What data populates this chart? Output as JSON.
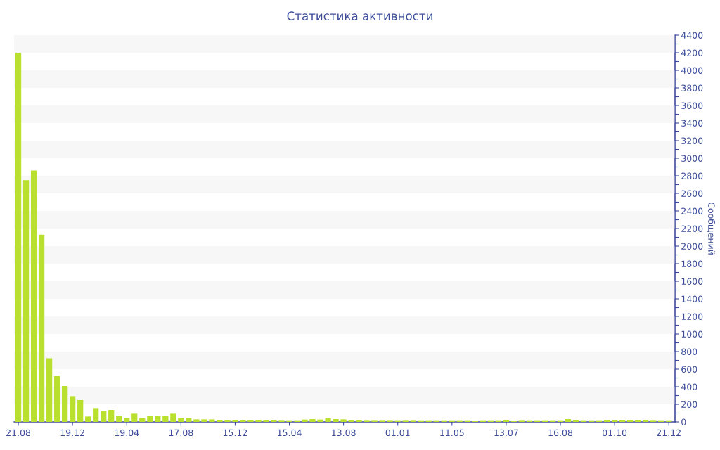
{
  "chart_data": {
    "type": "bar",
    "title": "Статистика активности",
    "y2label": "Сообщений",
    "categories": [
      "21.08",
      null,
      null,
      null,
      null,
      null,
      null,
      "19.12",
      null,
      null,
      null,
      null,
      null,
      null,
      "19.04",
      null,
      null,
      null,
      null,
      null,
      null,
      "17.08",
      null,
      null,
      null,
      null,
      null,
      null,
      "15.12",
      null,
      null,
      null,
      null,
      null,
      null,
      "15.04",
      null,
      null,
      null,
      null,
      null,
      null,
      "13.08",
      null,
      null,
      null,
      null,
      null,
      null,
      "01.01",
      null,
      null,
      null,
      null,
      null,
      null,
      "11.05",
      null,
      null,
      null,
      null,
      null,
      null,
      "13.07",
      null,
      null,
      null,
      null,
      null,
      null,
      "16.08",
      null,
      null,
      null,
      null,
      null,
      null,
      "01.10",
      null,
      null,
      null,
      null,
      null,
      null,
      "21.12"
    ],
    "series": [
      {
        "axis": "y2",
        "color": "#b9e02e",
        "values": [
          4200,
          2750,
          2860,
          2130,
          725,
          520,
          408,
          293,
          248,
          61,
          157,
          125,
          136,
          72,
          48,
          93,
          43,
          64,
          64,
          64,
          93,
          48,
          40,
          29,
          29,
          29,
          21,
          21,
          21,
          19,
          21,
          21,
          19,
          16,
          13,
          11,
          11,
          27,
          32,
          27,
          40,
          32,
          29,
          19,
          16,
          13,
          13,
          13,
          13,
          11,
          13,
          13,
          11,
          11,
          11,
          11,
          11,
          11,
          11,
          8,
          11,
          11,
          11,
          16,
          8,
          13,
          11,
          11,
          11,
          11,
          11,
          32,
          19,
          11,
          11,
          11,
          24,
          16,
          16,
          21,
          19,
          21,
          13,
          11,
          11
        ]
      }
    ],
    "y2lim": [
      0,
      4400
    ],
    "y2ticks": [
      0,
      {
        "value": 100,
        "label": null
      },
      200,
      {
        "value": 300,
        "label": null
      },
      400,
      {
        "value": 500,
        "label": null
      },
      600,
      {
        "value": 700,
        "label": null
      },
      800,
      {
        "value": 900,
        "label": null
      },
      1000,
      {
        "value": 1100,
        "label": null
      },
      1200,
      {
        "value": 1300,
        "label": null
      },
      1400,
      {
        "value": 1500,
        "label": null
      },
      1600,
      {
        "value": 1700,
        "label": null
      },
      1800,
      {
        "value": 1900,
        "label": null
      },
      2000,
      {
        "value": 2100,
        "label": null
      },
      2200,
      {
        "value": 2300,
        "label": null
      },
      2400,
      {
        "value": 2500,
        "label": null
      },
      2600,
      {
        "value": 2700,
        "label": null
      },
      2800,
      {
        "value": 2900,
        "label": null
      },
      3000,
      {
        "value": 3100,
        "label": null
      },
      3200,
      {
        "value": 3300,
        "label": null
      },
      3400,
      {
        "value": 3500,
        "label": null
      },
      3600,
      {
        "value": 3700,
        "label": null
      },
      3800,
      {
        "value": 3900,
        "label": null
      },
      4000,
      {
        "value": 4100,
        "label": null
      },
      4200,
      {
        "value": 4300,
        "label": null
      },
      4400
    ],
    "bands": [
      {
        "axis": "y2",
        "from": 200,
        "to": 400,
        "color": "#f7f7f7"
      },
      {
        "axis": "y2",
        "from": 600,
        "to": 800,
        "color": "#f7f7f7"
      },
      {
        "axis": "y2",
        "from": 1000,
        "to": 1200,
        "color": "#f7f7f7"
      },
      {
        "axis": "y2",
        "from": 1400,
        "to": 1600,
        "color": "#f7f7f7"
      },
      {
        "axis": "y2",
        "from": 1800,
        "to": 2000,
        "color": "#f7f7f7"
      },
      {
        "axis": "y2",
        "from": 2200,
        "to": 2400,
        "color": "#f7f7f7"
      },
      {
        "axis": "y2",
        "from": 2600,
        "to": 2800,
        "color": "#f7f7f7"
      },
      {
        "axis": "y2",
        "from": 3000,
        "to": 3200,
        "color": "#f7f7f7"
      },
      {
        "axis": "y2",
        "from": 3400,
        "to": 3600,
        "color": "#f7f7f7"
      },
      {
        "axis": "y2",
        "from": 3800,
        "to": 4000,
        "color": "#f7f7f7"
      },
      {
        "axis": "y2",
        "from": 4200,
        "to": 4400,
        "color": "#f7f7f7"
      }
    ]
  }
}
